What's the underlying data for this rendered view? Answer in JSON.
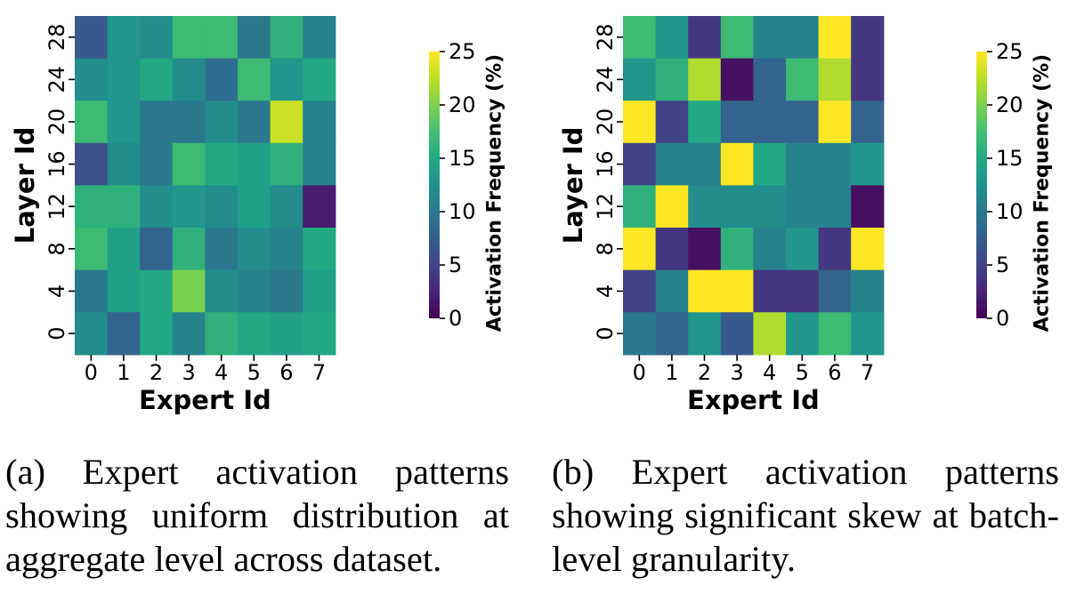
{
  "chart_data": [
    {
      "type": "heatmap",
      "id": "a",
      "title": "",
      "xlabel": "Expert Id",
      "ylabel": "Layer Id",
      "x_ticks": [
        "0",
        "1",
        "2",
        "3",
        "4",
        "5",
        "6",
        "7"
      ],
      "y_ticks": [
        "0",
        "4",
        "8",
        "12",
        "16",
        "20",
        "24",
        "28"
      ],
      "colorbar": {
        "label": "Activation Frequency (%)",
        "ticks": [
          "0",
          "5",
          "10",
          "15",
          "20",
          "25"
        ],
        "range": [
          0,
          25
        ],
        "colormap": "viridis"
      },
      "rows_top_to_bottom": [
        [
          7,
          13,
          12,
          17,
          17,
          10,
          16,
          11
        ],
        [
          12,
          13,
          15,
          12,
          9,
          17,
          13,
          15
        ],
        [
          17,
          13,
          10,
          10,
          12,
          10,
          23,
          11
        ],
        [
          6,
          12,
          10,
          17,
          15,
          14,
          16,
          11
        ],
        [
          16,
          16,
          12,
          13,
          12,
          14,
          12,
          2
        ],
        [
          17,
          14,
          8,
          16,
          10,
          12,
          11,
          15
        ],
        [
          10,
          14,
          15,
          20,
          12,
          11,
          10,
          14
        ],
        [
          12,
          8,
          15,
          11,
          16,
          15,
          14,
          15
        ]
      ]
    },
    {
      "type": "heatmap",
      "id": "b",
      "title": "",
      "xlabel": "Expert Id",
      "ylabel": "Layer Id",
      "x_ticks": [
        "0",
        "1",
        "2",
        "3",
        "4",
        "5",
        "6",
        "7"
      ],
      "y_ticks": [
        "0",
        "4",
        "8",
        "12",
        "16",
        "20",
        "24",
        "28"
      ],
      "colorbar": {
        "label": "Activation Frequency (%)",
        "ticks": [
          "0",
          "5",
          "10",
          "15",
          "20",
          "25"
        ],
        "range": [
          0,
          25
        ],
        "colormap": "viridis"
      },
      "rows_top_to_bottom": [
        [
          17,
          13,
          4,
          17,
          11,
          11,
          25,
          4
        ],
        [
          13,
          16,
          22,
          1,
          8,
          17,
          22,
          4
        ],
        [
          25,
          5,
          15,
          8,
          8,
          8,
          25,
          8
        ],
        [
          5,
          11,
          11,
          25,
          15,
          11,
          11,
          13
        ],
        [
          16,
          25,
          12,
          12,
          12,
          11,
          11,
          1
        ],
        [
          25,
          4,
          1,
          16,
          11,
          13,
          4,
          25
        ],
        [
          5,
          11,
          25,
          25,
          4,
          4,
          8,
          11
        ],
        [
          10,
          8,
          13,
          7,
          22,
          13,
          17,
          13
        ]
      ]
    }
  ],
  "captions": {
    "a": "(a) Expert activation patterns showing uniform distribution at aggregate level across dataset.",
    "b": "(b) Expert activation patterns showing significant skew at batch-level granularity."
  }
}
